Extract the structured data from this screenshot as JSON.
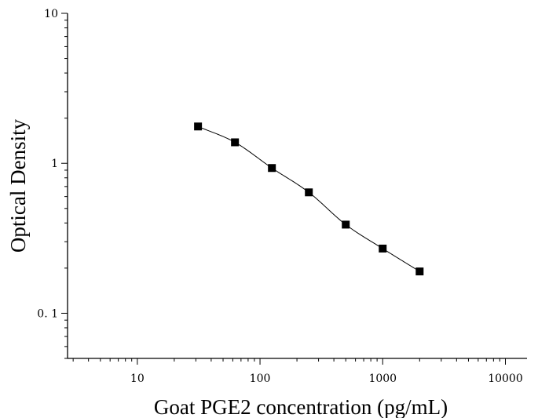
{
  "chart_data": {
    "type": "scatter",
    "title": "",
    "xlabel": "Goat PGE2 concentration (pg/mL)",
    "ylabel": "Optical Density",
    "x_scale": "log",
    "y_scale": "log",
    "xlim": [
      2.7,
      15000
    ],
    "ylim": [
      0.05,
      10
    ],
    "x_ticks": [
      10,
      100,
      1000,
      10000
    ],
    "x_tick_labels": [
      "10",
      "100",
      "1000",
      "10000"
    ],
    "y_ticks": [
      0.1,
      1,
      10
    ],
    "y_tick_labels": [
      "0. 1",
      "1",
      "10"
    ],
    "grid": false,
    "series": [
      {
        "x": [
          31.25,
          62.5,
          125,
          250,
          500,
          1000,
          2000
        ],
        "y": [
          1.76,
          1.38,
          0.93,
          0.64,
          0.39,
          0.27,
          0.19
        ]
      }
    ],
    "fit_curve": true,
    "colors": {
      "marker": "#000000",
      "line": "#000000",
      "axis": "#000000"
    }
  }
}
